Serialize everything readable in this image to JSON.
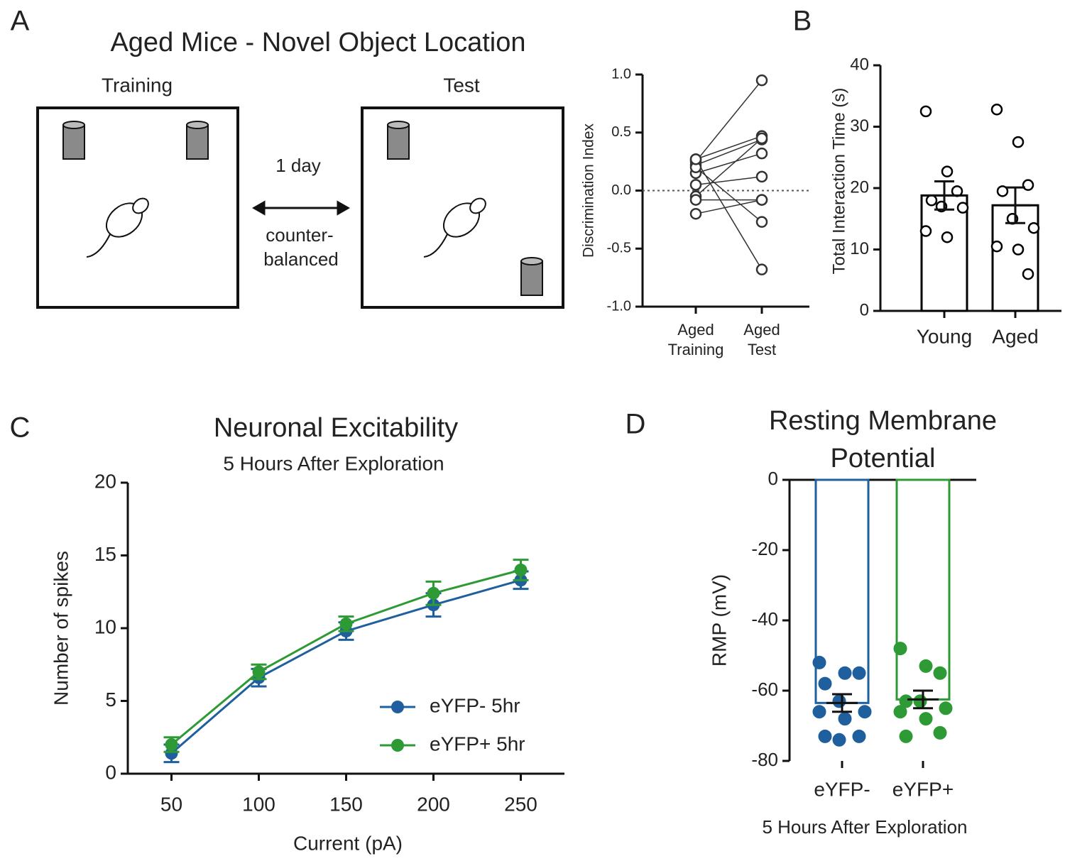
{
  "diagram": {
    "panel": "A",
    "title": "Aged Mice - Novel Object Location",
    "left_label": "Training",
    "right_label": "Test",
    "interval": "1 day",
    "note": [
      "counter-",
      "balanced"
    ]
  },
  "chart_data": [
    {
      "type": "paired",
      "ylabel": "Discrimination Index",
      "categories": [
        "Aged Training",
        "Aged Test"
      ],
      "series": [
        {
          "color": "#333333",
          "values": [
            0.25,
            0.95
          ]
        },
        {
          "color": "#333333",
          "values": [
            0.27,
            0.47
          ]
        },
        {
          "color": "#333333",
          "values": [
            0.22,
            0.44
          ]
        },
        {
          "color": "#333333",
          "values": [
            0.15,
            0.32
          ]
        },
        {
          "color": "#333333",
          "values": [
            -0.05,
            0.45
          ]
        },
        {
          "color": "#333333",
          "values": [
            0.05,
            0.12
          ]
        },
        {
          "color": "#333333",
          "values": [
            -0.2,
            -0.08
          ]
        },
        {
          "color": "#333333",
          "values": [
            0.2,
            -0.27
          ]
        },
        {
          "color": "#333333",
          "values": [
            0.27,
            -0.68
          ]
        },
        {
          "color": "#333333",
          "values": [
            -0.08,
            -0.08
          ]
        }
      ],
      "reference_line": 0,
      "ylim": [
        -1,
        1
      ],
      "yticks": [
        {
          "value": -1,
          "label": "-1.0"
        },
        {
          "value": -0.5,
          "label": "-0.5"
        },
        {
          "value": 0,
          "label": "0.0"
        },
        {
          "value": 0.5,
          "label": "0.5"
        },
        {
          "value": 1,
          "label": "1.0"
        }
      ]
    },
    {
      "type": "bar_scatter",
      "panel": "B",
      "ylabel": "Total Interaction Time (s)",
      "categories": [
        "Young",
        "Aged"
      ],
      "values": [
        18.8,
        17.2
      ],
      "errors": [
        2.3,
        2.9
      ],
      "points": [
        [
          32.5,
          22.7,
          19.5,
          18,
          17,
          16.8,
          13,
          12
        ],
        [
          32.8,
          27.5,
          20.5,
          19.5,
          15,
          13.5,
          10.5,
          10,
          6
        ]
      ],
      "colors": [
        "#000000",
        "#000000"
      ],
      "ylim": [
        0,
        40
      ],
      "yticks": [
        0,
        10,
        20,
        30,
        40
      ]
    },
    {
      "type": "line",
      "panel": "C",
      "title": "Neuronal Excitability",
      "subtitle": "5 Hours After Exploration",
      "xlabel": "Current (pA)",
      "ylabel": "Number of spikes",
      "x": [
        50,
        100,
        150,
        200,
        250
      ],
      "series": [
        {
          "name": "eYFP- 5hr",
          "color": "#1f5f9e",
          "values": [
            1.4,
            6.6,
            9.8,
            11.6,
            13.3
          ],
          "errors": [
            0.6,
            0.6,
            0.6,
            0.8,
            0.6
          ]
        },
        {
          "name": "eYFP+ 5hr",
          "color": "#2e9a36",
          "values": [
            2.0,
            7.0,
            10.3,
            12.4,
            14.0
          ],
          "errors": [
            0.5,
            0.5,
            0.5,
            0.8,
            0.7
          ]
        }
      ],
      "legend": "lower right",
      "xlim": [
        25,
        275
      ],
      "xticks": [
        50,
        100,
        150,
        200,
        250
      ],
      "ylim": [
        0,
        20
      ],
      "yticks": [
        0,
        5,
        10,
        15,
        20
      ]
    },
    {
      "type": "bar_scatter",
      "panel": "D",
      "title": "Resting Membrane Potential",
      "ylabel": "RMP (mV)",
      "xlabel": "5 Hours After Exploration",
      "categories": [
        "eYFP-",
        "eYFP+"
      ],
      "values": [
        -63.5,
        -62.5
      ],
      "errors": [
        2.5,
        2.5
      ],
      "points": [
        [
          -52,
          -55,
          -55,
          -58,
          -63,
          -66,
          -66,
          -68,
          -73,
          -73,
          -74
        ],
        [
          -48,
          -53,
          -55,
          -63,
          -63,
          -65,
          -66,
          -68,
          -72,
          -73
        ]
      ],
      "colors": [
        "#1f5f9e",
        "#2e9a36"
      ],
      "ylim": [
        -80,
        0
      ],
      "yticks": [
        -80,
        -60,
        -40,
        -20,
        0
      ]
    }
  ]
}
